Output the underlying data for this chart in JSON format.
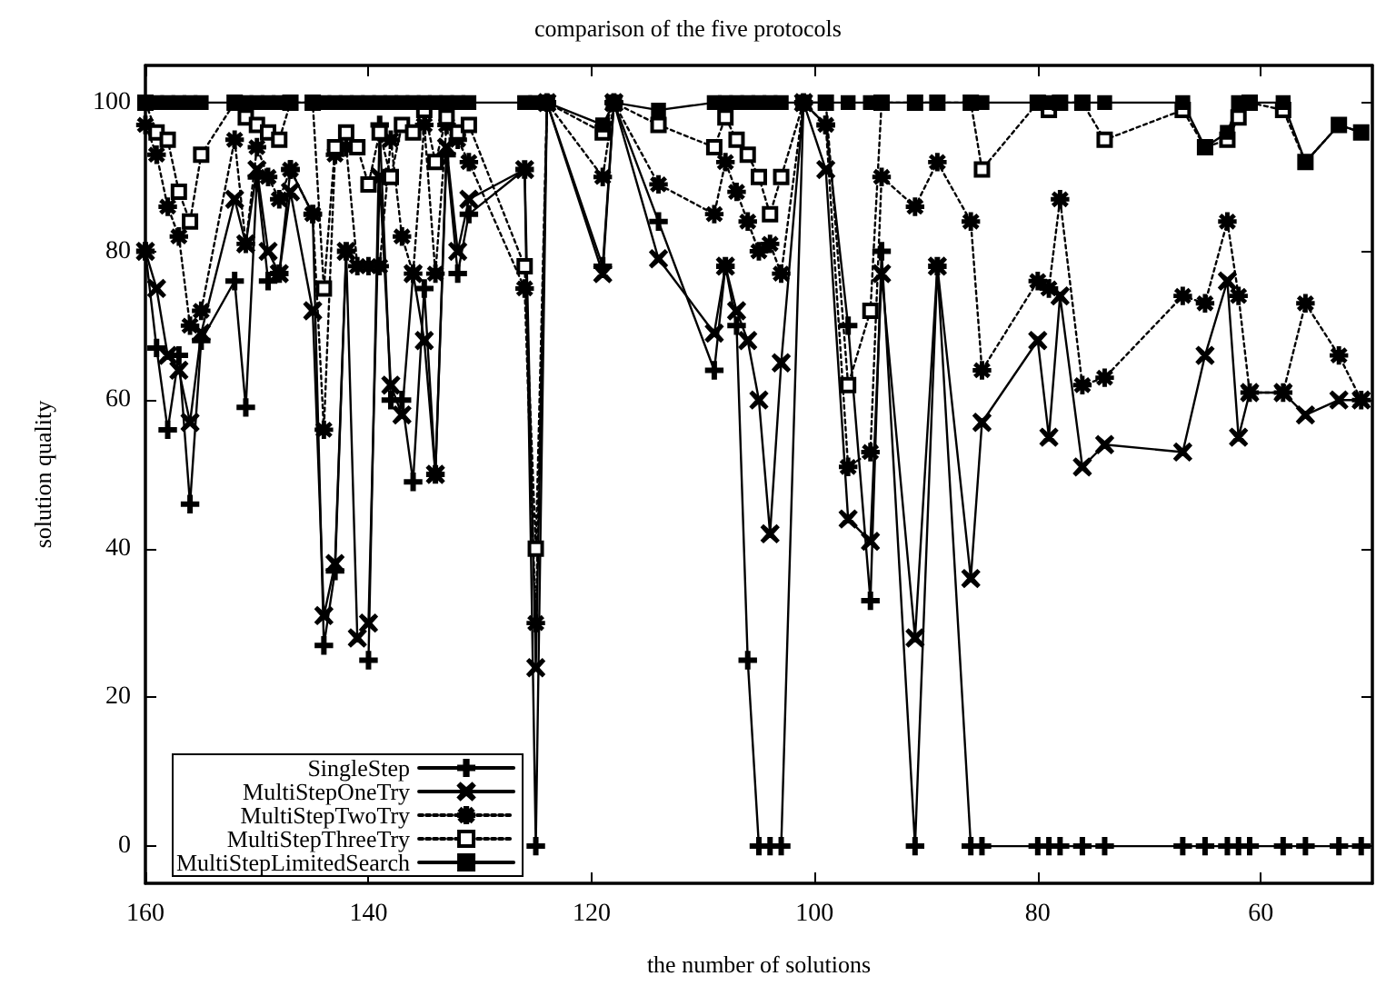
{
  "chart_data": {
    "type": "line",
    "title": "comparison of the five protocols",
    "xlabel": "the number of solutions",
    "ylabel": "solution quality",
    "x": [
      160,
      159,
      158,
      157,
      156,
      155,
      152,
      151,
      150,
      149,
      148,
      147,
      145,
      144,
      143,
      142,
      141,
      140,
      139,
      138,
      137,
      136,
      135,
      134,
      133,
      132,
      131,
      126,
      125,
      124,
      119,
      118,
      114,
      109,
      108,
      107,
      106,
      105,
      104,
      103,
      101,
      99,
      97,
      95,
      94,
      91,
      89,
      86,
      85,
      80,
      79,
      78,
      76,
      74,
      67,
      65,
      63,
      62,
      61,
      58,
      56,
      53,
      51
    ],
    "xlim": [
      160,
      50
    ],
    "xticks": [
      160,
      140,
      120,
      100,
      80,
      60
    ],
    "ylim": [
      -5,
      105
    ],
    "yticks": [
      0,
      20,
      40,
      60,
      80,
      100
    ],
    "grid": false,
    "legend": "bottom left",
    "series": [
      {
        "name": "SingleStep",
        "color": "#000000",
        "marker": "plus",
        "line_style": "solid",
        "values": [
          80,
          67,
          56,
          66,
          46,
          68,
          76,
          59,
          90,
          76,
          77,
          91,
          85,
          27,
          37,
          80,
          null,
          25,
          97,
          60,
          60,
          49,
          75,
          50,
          93,
          77,
          85,
          91,
          0,
          100,
          78,
          100,
          84,
          64,
          78,
          70,
          25,
          0,
          0,
          0,
          100,
          97,
          70,
          33,
          80,
          0,
          78,
          0,
          0,
          0,
          0,
          0,
          0,
          0,
          0,
          0,
          0,
          0,
          0,
          0,
          0,
          0,
          0
        ]
      },
      {
        "name": "MultiStepOneTry",
        "color": "#000000",
        "marker": "cross",
        "line_style": "solid",
        "values": [
          80,
          75,
          66,
          64,
          57,
          69,
          87,
          81,
          91,
          80,
          77,
          88,
          72,
          31,
          38,
          80,
          28,
          30,
          90,
          62,
          58,
          77,
          68,
          50,
          94,
          80,
          87,
          91,
          24,
          100,
          77,
          100,
          79,
          69,
          78,
          72,
          68,
          60,
          42,
          65,
          100,
          91,
          44,
          41,
          77,
          28,
          78,
          36,
          57,
          68,
          55,
          74,
          51,
          54,
          53,
          66,
          76,
          55,
          61,
          61,
          58,
          60,
          60
        ]
      },
      {
        "name": "MultiStepTwoTry",
        "color": "#000000",
        "marker": "star",
        "line_style": "dotted",
        "values": [
          97,
          93,
          86,
          82,
          70,
          72,
          95,
          81,
          94,
          90,
          87,
          91,
          85,
          56,
          93,
          94,
          78,
          78,
          78,
          95,
          82,
          77,
          97,
          77,
          97,
          95,
          92,
          75,
          30,
          100,
          90,
          100,
          89,
          85,
          92,
          88,
          84,
          80,
          81,
          77,
          100,
          97,
          51,
          53,
          90,
          86,
          92,
          84,
          64,
          76,
          75,
          87,
          62,
          63,
          74,
          73,
          84,
          74,
          61,
          61,
          73,
          66,
          60
        ]
      },
      {
        "name": "MultiStepThreeTry",
        "color": "#000000",
        "marker": "square",
        "line_style": "dotted",
        "values": [
          100,
          96,
          95,
          88,
          84,
          93,
          100,
          98,
          97,
          96,
          95,
          100,
          100,
          75,
          94,
          96,
          94,
          89,
          96,
          90,
          97,
          96,
          99,
          92,
          98,
          96,
          97,
          78,
          40,
          100,
          96,
          100,
          97,
          94,
          98,
          95,
          93,
          90,
          85,
          90,
          100,
          100,
          62,
          72,
          100,
          100,
          100,
          100,
          91,
          100,
          99,
          100,
          100,
          95,
          99,
          94,
          95,
          98,
          100,
          99,
          92,
          97,
          96
        ]
      },
      {
        "name": "MultiStepLimitedSearch",
        "color": "#000000",
        "marker": "square",
        "line_style": "solid",
        "values": [
          100,
          100,
          100,
          100,
          100,
          100,
          100,
          100,
          100,
          100,
          100,
          100,
          100,
          100,
          100,
          100,
          100,
          100,
          100,
          100,
          100,
          100,
          100,
          100,
          100,
          100,
          100,
          100,
          100,
          100,
          97,
          100,
          99,
          100,
          100,
          100,
          100,
          100,
          100,
          100,
          100,
          100,
          100,
          100,
          100,
          100,
          100,
          100,
          100,
          100,
          100,
          100,
          100,
          100,
          100,
          94,
          96,
          100,
          100,
          100,
          92,
          97,
          96
        ]
      }
    ]
  }
}
